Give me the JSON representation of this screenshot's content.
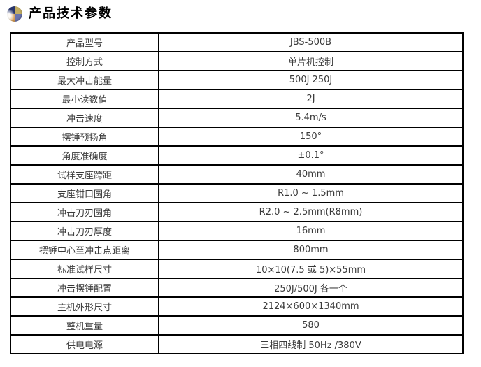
{
  "header": {
    "title": "产品技术参数",
    "icon": "sphere-quadrant-icon"
  },
  "colors": {
    "page_bg": "#ffffff",
    "title_color": "#000000",
    "border_color": "#000000",
    "cell_text_color": "#3a3a3a",
    "icon_quadrant_top_left": "#28356b",
    "icon_quadrant_top_right": "#c3ad62",
    "icon_quadrant_bottom_left": "#d59a50",
    "icon_quadrant_bottom_right": "#6b74ad"
  },
  "table": {
    "rows": [
      {
        "label": "产品型号",
        "value": "JBS-500B"
      },
      {
        "label": "控制方式",
        "value": "单片机控制"
      },
      {
        "label": "最大冲击能量",
        "value": "500J 250J"
      },
      {
        "label": "最小读数值",
        "value": "2J"
      },
      {
        "label": "冲击速度",
        "value": "5.4m/s"
      },
      {
        "label": "摆锤预扬角",
        "value": "150°"
      },
      {
        "label": "角度准确度",
        "value": "±0.1°"
      },
      {
        "label": "试样支座跨距",
        "value": "40mm"
      },
      {
        "label": "支座钳口圆角",
        "value": "R1.0 ~ 1.5mm"
      },
      {
        "label": "冲击刀刃圆角",
        "value": "R2.0 ~ 2.5mm(R8mm)"
      },
      {
        "label": "冲击刀刃厚度",
        "value": "16mm"
      },
      {
        "label": "摆锤中心至冲击点距离",
        "value": "800mm"
      },
      {
        "label": "标准试样尺寸",
        "value": "10×10(7.5 或 5)×55mm"
      },
      {
        "label": "冲击摆锤配置",
        "value": "250J/500J 各一个"
      },
      {
        "label": "主机外形尺寸",
        "value": "2124×600×1340mm"
      },
      {
        "label": "整机重量",
        "value": "580"
      },
      {
        "label": "供电电源",
        "value": "三相四线制 50Hz /380V"
      }
    ]
  }
}
